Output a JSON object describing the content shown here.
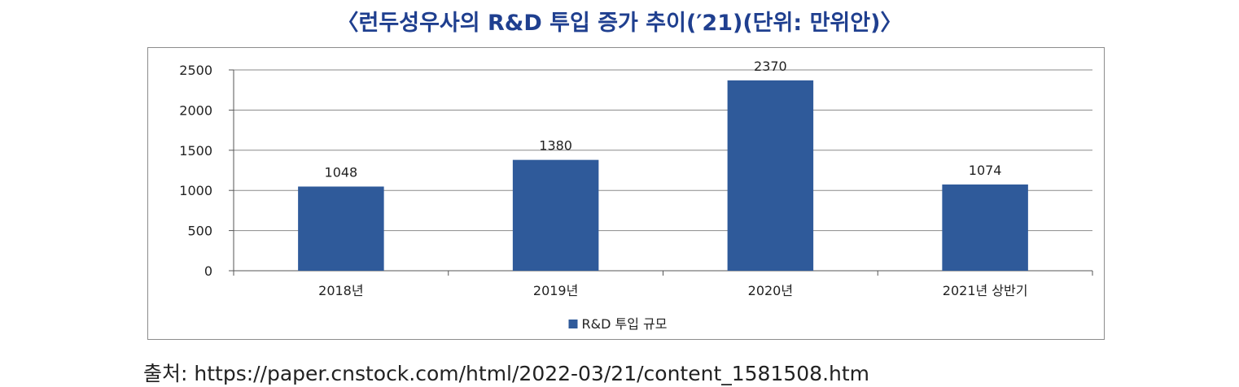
{
  "title": "〈런두성우사의 R&D 투입 증가 추이(′21)(단위: 만위안)〉",
  "source": "출처: https://paper.cnstock.com/html/2022-03/21/content_1581508.htm",
  "chart_data": {
    "type": "bar",
    "categories": [
      "2018년",
      "2019년",
      "2020년",
      "2021년 상반기"
    ],
    "series": [
      {
        "name": "R&D 투입 규모",
        "values": [
          1048,
          1380,
          2370,
          1074
        ],
        "color": "#2f5a9a"
      }
    ],
    "ylim": [
      0,
      2500
    ],
    "yticks": [
      0,
      500,
      1000,
      1500,
      2000,
      2500
    ],
    "data_labels": [
      "1048",
      "1380",
      "2370",
      "1074"
    ],
    "grid": true,
    "legend_position": "bottom"
  }
}
